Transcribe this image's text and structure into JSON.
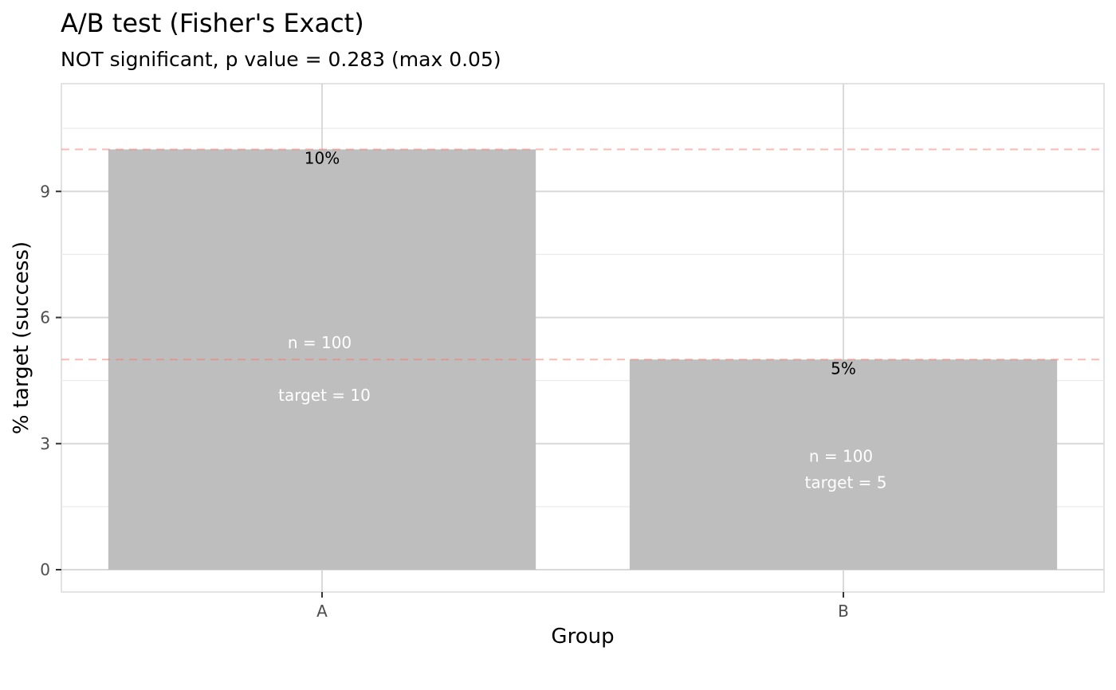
{
  "chart_data": {
    "type": "bar",
    "title": "A/B test (Fisher's Exact)",
    "subtitle": "NOT significant, p value = 0.283 (max 0.05)",
    "xlabel": "Group",
    "ylabel": "% target (success)",
    "categories": [
      "A",
      "B"
    ],
    "values": [
      10,
      5
    ],
    "value_labels": [
      "10%",
      "5%"
    ],
    "n_labels": [
      "n = 100",
      "n = 100"
    ],
    "target_labels": [
      "target = 10",
      "target =  5"
    ],
    "reference_lines": [
      10,
      5
    ],
    "yticks": [
      0,
      3,
      6,
      9
    ],
    "ylim": [
      -0.53,
      11.5
    ],
    "bar_color": "#bebebe",
    "reference_line_color": "#f8766d",
    "grid": true,
    "legend": "none"
  }
}
